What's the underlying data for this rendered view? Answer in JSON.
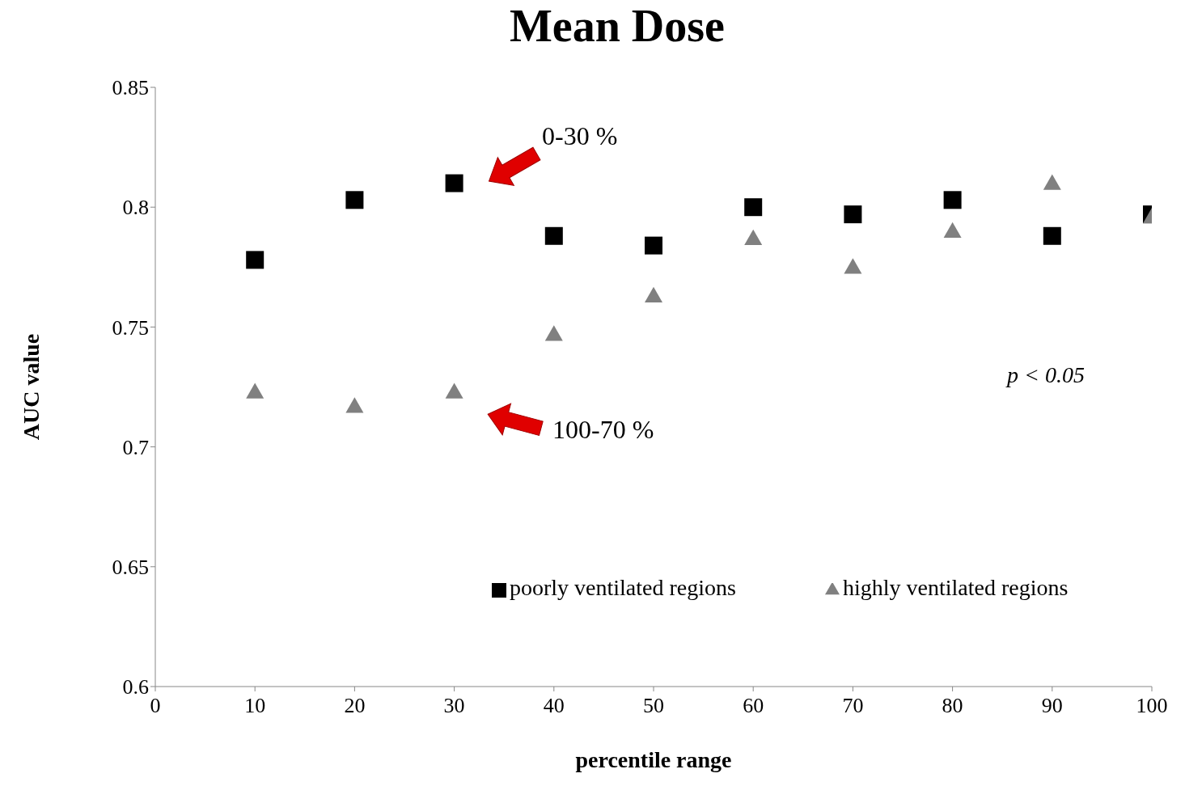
{
  "chart_data": {
    "type": "scatter",
    "title": "Mean Dose",
    "xlabel": "percentile range",
    "ylabel": "AUC value",
    "x": [
      10,
      20,
      30,
      40,
      50,
      60,
      70,
      80,
      90,
      100
    ],
    "series": [
      {
        "name": "poorly ventilated regions",
        "color": "#000000",
        "marker": "square",
        "values": [
          0.778,
          0.803,
          0.81,
          0.788,
          0.784,
          0.8,
          0.797,
          0.803,
          0.788,
          0.797
        ]
      },
      {
        "name": "highly ventilated regions",
        "color": "#808080",
        "marker": "triangle",
        "values": [
          0.723,
          0.717,
          0.723,
          0.747,
          0.763,
          0.787,
          0.775,
          0.79,
          0.81,
          0.796
        ]
      }
    ],
    "xlim": [
      0,
      100
    ],
    "xticks": [
      0,
      10,
      20,
      30,
      40,
      50,
      60,
      70,
      80,
      90,
      100
    ],
    "ylim": [
      0.6,
      0.85
    ],
    "yticks": [
      0.6,
      0.65,
      0.7,
      0.75,
      0.8,
      0.85
    ],
    "grid": false,
    "legend": "bottom",
    "annotations": [
      "0-30 %",
      "100-70 %",
      "p < 0.05"
    ]
  }
}
